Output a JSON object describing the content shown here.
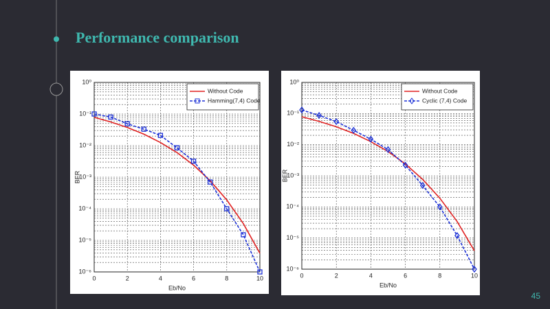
{
  "slide": {
    "title": "Performance comparison",
    "page_number": "45"
  },
  "chart_data": [
    {
      "type": "line",
      "xlabel": "Eb/No",
      "ylabel": "BER",
      "log_y": true,
      "grid": true,
      "legend": "top-right",
      "xlim": [
        0,
        10
      ],
      "xticks": [
        0,
        2,
        4,
        6,
        8,
        10
      ],
      "ylim": [
        1e-06,
        1
      ],
      "yticks": [
        {
          "value": 1,
          "label": "10⁰"
        },
        {
          "value": 0.1,
          "label": "10⁻¹"
        },
        {
          "value": 0.01,
          "label": "10⁻²"
        },
        {
          "value": 0.001,
          "label": "10⁻³"
        },
        {
          "value": 0.0001,
          "label": "10⁻⁴"
        },
        {
          "value": 1e-05,
          "label": "10⁻⁵"
        },
        {
          "value": 1e-06,
          "label": "10⁻⁶"
        }
      ],
      "x": [
        0,
        1,
        2,
        3,
        4,
        5,
        6,
        7,
        8,
        9,
        10
      ],
      "series": [
        {
          "name": "Without Code",
          "color": "#e02020",
          "dash": false,
          "marker": "none",
          "values": [
            0.079,
            0.056,
            0.0375,
            0.023,
            0.0125,
            0.006,
            0.0024,
            0.00077,
            0.00019,
            3.4e-05,
            3.9e-06
          ]
        },
        {
          "name": "Hamming(7,4) Code",
          "color": "#1a2fd6",
          "dash": true,
          "marker": "square",
          "values": [
            0.1,
            0.08,
            0.049,
            0.033,
            0.021,
            0.0085,
            0.0032,
            0.0007,
            0.0001,
            1.5e-05,
            1e-06
          ]
        }
      ]
    },
    {
      "type": "line",
      "xlabel": "Eb/No",
      "ylabel": "BER",
      "log_y": true,
      "grid": true,
      "legend": "top-right",
      "xlim": [
        0,
        10
      ],
      "xticks": [
        0,
        2,
        4,
        6,
        8,
        10
      ],
      "ylim": [
        1e-06,
        1
      ],
      "yticks": [
        {
          "value": 1,
          "label": "10⁰"
        },
        {
          "value": 0.1,
          "label": "10⁻¹"
        },
        {
          "value": 0.01,
          "label": "10⁻²"
        },
        {
          "value": 0.001,
          "label": "10⁻³"
        },
        {
          "value": 0.0001,
          "label": "10⁻⁴"
        },
        {
          "value": 1e-05,
          "label": "10⁻⁵"
        },
        {
          "value": 1e-06,
          "label": "10⁻⁶"
        }
      ],
      "x": [
        0,
        1,
        2,
        3,
        4,
        5,
        6,
        7,
        8,
        9,
        10
      ],
      "series": [
        {
          "name": "Without Code",
          "color": "#e02020",
          "dash": false,
          "marker": "none",
          "values": [
            0.079,
            0.056,
            0.0375,
            0.023,
            0.0125,
            0.006,
            0.0024,
            0.00077,
            0.00019,
            3.4e-05,
            3.9e-06
          ]
        },
        {
          "name": "Cyclic (7,4) Code",
          "color": "#1a2fd6",
          "dash": true,
          "marker": "diamond",
          "values": [
            0.13,
            0.087,
            0.055,
            0.029,
            0.015,
            0.0069,
            0.0022,
            0.00049,
            0.0001,
            1.2e-05,
            1e-06
          ]
        }
      ]
    }
  ]
}
